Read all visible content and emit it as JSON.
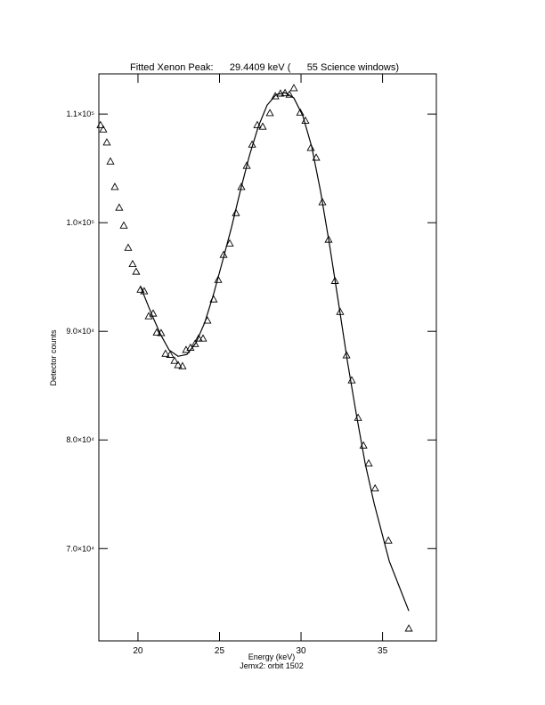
{
  "chart_data": {
    "type": "scatter",
    "title": "Fitted Xenon Peak:      29.4409 keV (      55 Science windows)",
    "x_label": "Energy (keV)",
    "subtitle": "Jemx2: orbit 1502",
    "y_label": "Detector counts",
    "xlim": [
      17.6,
      38.3
    ],
    "ylim": [
      61500,
      113700
    ],
    "xticks": [
      20,
      25,
      30,
      35
    ],
    "yticks": [
      {
        "value": 70000,
        "label": "7.0×10⁴"
      },
      {
        "value": 80000,
        "label": "8.0×10⁴"
      },
      {
        "value": 90000,
        "label": "9.0×10⁴"
      },
      {
        "value": 100000,
        "label": "1.0×10⁵"
      },
      {
        "value": 110000,
        "label": "1.1×10⁵"
      }
    ],
    "series": [
      {
        "kind": "points",
        "marker": "triangle",
        "color": "#000000",
        "x": [
          17.7,
          17.87,
          18.09,
          18.31,
          18.58,
          18.85,
          19.13,
          19.4,
          19.67,
          19.89,
          20.16,
          20.38,
          20.66,
          20.93,
          21.15,
          21.42,
          21.69,
          21.97,
          22.24,
          22.46,
          22.73,
          22.95,
          23.22,
          23.5,
          23.72,
          23.99,
          24.26,
          24.64,
          24.92,
          25.25,
          25.63,
          26.01,
          26.34,
          26.67,
          27.0,
          27.32,
          27.65,
          28.09,
          28.42,
          28.74,
          29.02,
          29.29,
          29.56,
          29.95,
          30.27,
          30.6,
          30.93,
          31.31,
          31.69,
          32.08,
          32.4,
          32.79,
          33.11,
          33.5,
          33.83,
          34.15,
          34.54,
          35.36,
          36.61
        ],
        "values": [
          109000,
          108600,
          107400,
          105650,
          103300,
          101400,
          99750,
          97700,
          96200,
          95500,
          93850,
          93700,
          91400,
          91650,
          89900,
          89850,
          87950,
          87850,
          87300,
          86900,
          86800,
          88300,
          88500,
          88850,
          89350,
          89350,
          91000,
          92950,
          94750,
          97050,
          98100,
          100900,
          103300,
          105250,
          107200,
          109000,
          108850,
          110100,
          111650,
          111900,
          111950,
          111800,
          112400,
          110150,
          109400,
          106900,
          106000,
          101900,
          98450,
          94650,
          91800,
          87800,
          85500,
          82050,
          79500,
          77850,
          75550,
          70750,
          62650
        ]
      },
      {
        "kind": "line",
        "color": "#000000",
        "x": [
          20.16,
          20.82,
          21.37,
          21.91,
          22.46,
          23.0,
          23.55,
          24.1,
          24.64,
          25.19,
          25.74,
          26.28,
          26.83,
          27.38,
          27.92,
          28.47,
          29.02,
          29.56,
          30.11,
          30.66,
          31.2,
          31.75,
          32.3,
          32.84,
          33.39,
          33.93,
          34.48,
          35.41,
          36.61
        ],
        "values": [
          94100,
          91640,
          89750,
          88280,
          87700,
          87870,
          88930,
          90820,
          93440,
          96480,
          99590,
          102950,
          106150,
          108850,
          110820,
          111800,
          111970,
          111480,
          109840,
          106970,
          102870,
          97950,
          92620,
          87290,
          82380,
          77870,
          74180,
          68850,
          64260
        ]
      }
    ]
  }
}
